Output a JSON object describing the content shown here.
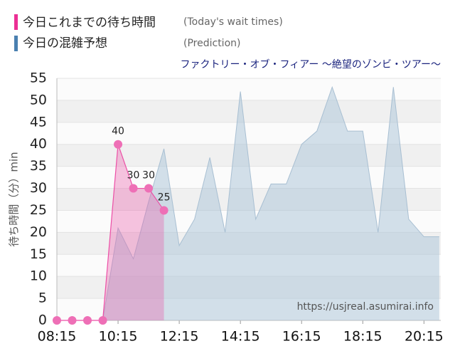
{
  "chart_data": {
    "type": "area",
    "subtitle": "ファクトリー・オブ・フィアー ～絶望のゾンビ・ツアー～",
    "y_label": "待ち時間（分）min",
    "watermark": "https://usjreal.asumirai.info",
    "x": [
      8.25,
      8.75,
      9.25,
      9.75,
      10.25,
      10.75,
      11.25,
      11.75,
      12.25,
      12.75,
      13.25,
      13.75,
      14.25,
      14.75,
      15.25,
      15.75,
      16.25,
      16.75,
      17.25,
      17.75,
      18.25,
      18.75,
      19.25,
      19.75,
      20.25,
      20.75
    ],
    "series": [
      {
        "name": "今日の混雑予想",
        "name_en": "(Prediction)",
        "color": "#4a80b0",
        "values": [
          0,
          0,
          0,
          0,
          21,
          14,
          27,
          39,
          17,
          23,
          37,
          20,
          52,
          23,
          31,
          31,
          40,
          43,
          53,
          43,
          43,
          20,
          53,
          23,
          19,
          19
        ]
      },
      {
        "name": "今日これまでの待ち時間",
        "name_en": "(Today's wait times)",
        "color": "#ec2f94",
        "values": [
          0,
          0,
          0,
          0,
          40,
          30,
          30,
          25,
          null,
          null,
          null,
          null,
          null,
          null,
          null,
          null,
          null,
          null,
          null,
          null,
          null,
          null,
          null,
          null,
          null,
          null
        ]
      }
    ],
    "xlim": [
      8.25,
      20.8
    ],
    "xticks": [
      {
        "value": 8.25,
        "label": "08:15"
      },
      {
        "value": 10.25,
        "label": "10:15"
      },
      {
        "value": 12.25,
        "label": "12:15"
      },
      {
        "value": 14.25,
        "label": "14:15"
      },
      {
        "value": 16.25,
        "label": "16:15"
      },
      {
        "value": 18.25,
        "label": "18:15"
      },
      {
        "value": 20.25,
        "label": "20:15"
      }
    ],
    "ylim": [
      0,
      55
    ],
    "yticks": [
      0,
      5,
      10,
      15,
      20,
      25,
      30,
      35,
      40,
      45,
      50,
      55
    ],
    "grid": true
  }
}
